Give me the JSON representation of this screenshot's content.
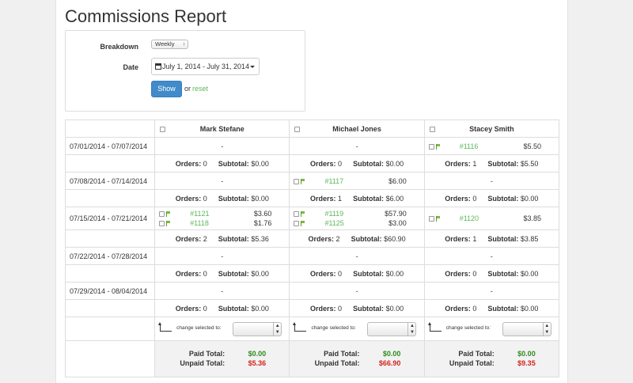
{
  "page_title": "Commissions Report",
  "filter": {
    "breakdown_label": "Breakdown",
    "breakdown_value": "Weekly",
    "date_label": "Date",
    "date_value": "July 1, 2014 - July 31, 2014",
    "show_label": "Show",
    "or_text": "or",
    "reset_label": "reset"
  },
  "columns": [
    "Mark Stefane",
    "Michael Jones",
    "Stacey Smith"
  ],
  "labels": {
    "orders": "Orders:",
    "subtotal": "Subtotal:",
    "change_selected": "change selected to:",
    "paid_total": "Paid Total:",
    "unpaid_total": "Unpaid Total:",
    "dash": "-"
  },
  "periods": [
    {
      "date": "07/01/2014 - 07/07/2014",
      "cells": [
        {
          "orders": [],
          "count": "0",
          "subtotal": "$0.00"
        },
        {
          "orders": [],
          "count": "0",
          "subtotal": "$0.00"
        },
        {
          "orders": [
            {
              "id": "#1116",
              "amount": "$5.50"
            }
          ],
          "count": "1",
          "subtotal": "$5.50"
        }
      ]
    },
    {
      "date": "07/08/2014 - 07/14/2014",
      "cells": [
        {
          "orders": [],
          "count": "0",
          "subtotal": "$0.00"
        },
        {
          "orders": [
            {
              "id": "#1117",
              "amount": "$6.00"
            }
          ],
          "count": "1",
          "subtotal": "$6.00"
        },
        {
          "orders": [],
          "count": "0",
          "subtotal": "$0.00"
        }
      ]
    },
    {
      "date": "07/15/2014 - 07/21/2014",
      "cells": [
        {
          "orders": [
            {
              "id": "#1121",
              "amount": "$3.60"
            },
            {
              "id": "#1118",
              "amount": "$1.76"
            }
          ],
          "count": "2",
          "subtotal": "$5.36"
        },
        {
          "orders": [
            {
              "id": "#1119",
              "amount": "$57.90"
            },
            {
              "id": "#1125",
              "amount": "$3.00"
            }
          ],
          "count": "2",
          "subtotal": "$60.90"
        },
        {
          "orders": [
            {
              "id": "#1120",
              "amount": "$3.85"
            }
          ],
          "count": "1",
          "subtotal": "$3.85"
        }
      ]
    },
    {
      "date": "07/22/2014 - 07/28/2014",
      "cells": [
        {
          "orders": [],
          "count": "0",
          "subtotal": "$0.00"
        },
        {
          "orders": [],
          "count": "0",
          "subtotal": "$0.00"
        },
        {
          "orders": [],
          "count": "0",
          "subtotal": "$0.00"
        }
      ]
    },
    {
      "date": "07/29/2014 - 08/04/2014",
      "cells": [
        {
          "orders": [],
          "count": "0",
          "subtotal": "$0.00"
        },
        {
          "orders": [],
          "count": "0",
          "subtotal": "$0.00"
        },
        {
          "orders": [],
          "count": "0",
          "subtotal": "$0.00"
        }
      ]
    }
  ],
  "totals": [
    {
      "paid": "$0.00",
      "unpaid": "$5.36"
    },
    {
      "paid": "$0.00",
      "unpaid": "$66.90"
    },
    {
      "paid": "$0.00",
      "unpaid": "$9.35"
    }
  ],
  "colors": {
    "accent": "#428bca",
    "link": "#5cb85c",
    "paid": "#2e8b1e",
    "unpaid": "#d0261d"
  }
}
